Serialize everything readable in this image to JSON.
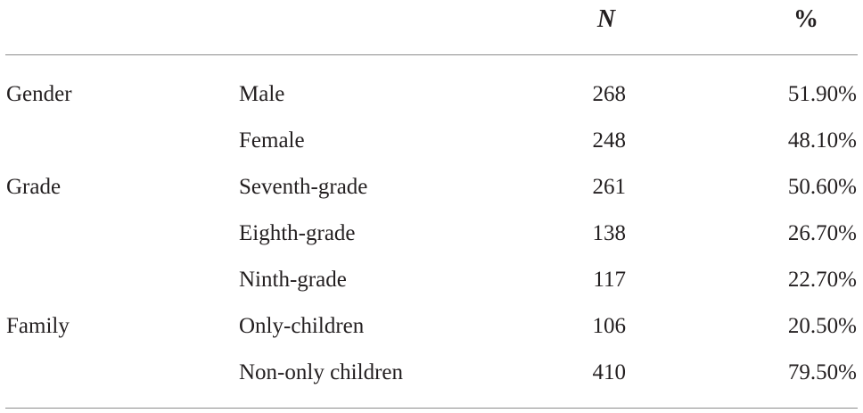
{
  "header": {
    "n_label": "N",
    "pct_label": "%"
  },
  "rows": [
    {
      "category": "Gender",
      "subcategory": "Male",
      "n": "268",
      "pct": "51.90%"
    },
    {
      "category": "",
      "subcategory": "Female",
      "n": "248",
      "pct": "48.10%"
    },
    {
      "category": "Grade",
      "subcategory": "Seventh-grade",
      "n": "261",
      "pct": "50.60%"
    },
    {
      "category": "",
      "subcategory": "Eighth-grade",
      "n": "138",
      "pct": "26.70%"
    },
    {
      "category": "",
      "subcategory": "Ninth-grade",
      "n": "117",
      "pct": "22.70%"
    },
    {
      "category": "Family",
      "subcategory": "Only-children",
      "n": "106",
      "pct": "20.50%"
    },
    {
      "category": "",
      "subcategory": "Non-only children",
      "n": "410",
      "pct": "79.50%"
    }
  ]
}
